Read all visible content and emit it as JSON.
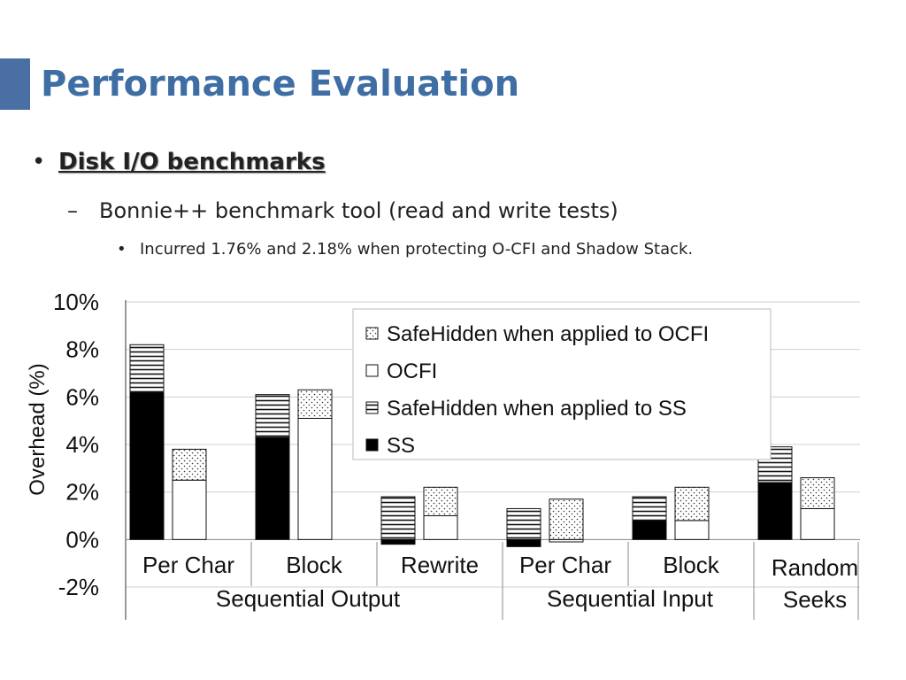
{
  "slide": {
    "title": "Performance Evaluation",
    "bullet1": "Disk I/O benchmarks",
    "bullet2": "Bonnie++ benchmark tool (read and write tests)",
    "bullet3": "Incurred 1.76% and 2.18% when protecting O-CFI and Shadow Stack.",
    "bullet_marker": "•",
    "dash_marker": "–"
  },
  "chart_data": {
    "type": "bar",
    "stacked": true,
    "ylabel": "Overhead (%)",
    "ylim": [
      -2,
      10
    ],
    "yticks": [
      "-2%",
      "0%",
      "2%",
      "4%",
      "6%",
      "8%",
      "10%"
    ],
    "ytick_values": [
      -2,
      0,
      2,
      4,
      6,
      8,
      10
    ],
    "grid": true,
    "legend_position": "top-right",
    "categories": [
      {
        "label": "Per Char",
        "group": "Sequential Output"
      },
      {
        "label": "Block",
        "group": "Sequential Output"
      },
      {
        "label": "Rewrite",
        "group": "Sequential Output"
      },
      {
        "label": "Per Char",
        "group": "Sequential Input"
      },
      {
        "label": "Block",
        "group": "Sequential Input"
      },
      {
        "label": "Random Seeks",
        "group": ""
      }
    ],
    "groups": [
      "Sequential Output",
      "Sequential Input"
    ],
    "random_label_lines": [
      "Random",
      "Seeks"
    ],
    "series": [
      {
        "name": "SafeHidden when applied to OCFI",
        "stack": "OCFI",
        "role": "top",
        "fill": "dots",
        "values": [
          1.3,
          1.2,
          1.2,
          1.7,
          1.4,
          1.3
        ]
      },
      {
        "name": "OCFI",
        "stack": "OCFI",
        "role": "base",
        "fill": "white",
        "values": [
          2.5,
          5.1,
          1.0,
          -0.1,
          0.8,
          1.3
        ]
      },
      {
        "name": "SafeHidden when applied to SS",
        "stack": "SS",
        "role": "top",
        "fill": "hlines",
        "values": [
          2.0,
          1.8,
          1.8,
          1.3,
          1.0,
          1.5
        ]
      },
      {
        "name": "SS",
        "stack": "SS",
        "role": "base",
        "fill": "black",
        "values": [
          6.2,
          4.3,
          -0.2,
          -0.3,
          0.8,
          2.4
        ]
      }
    ],
    "legend_order": [
      0,
      1,
      2,
      3
    ]
  },
  "colors": {
    "title": "#3e6ea4",
    "accent": "#4a6fa5",
    "bar_stroke": "#111111",
    "grid": "#d0d0d0"
  }
}
